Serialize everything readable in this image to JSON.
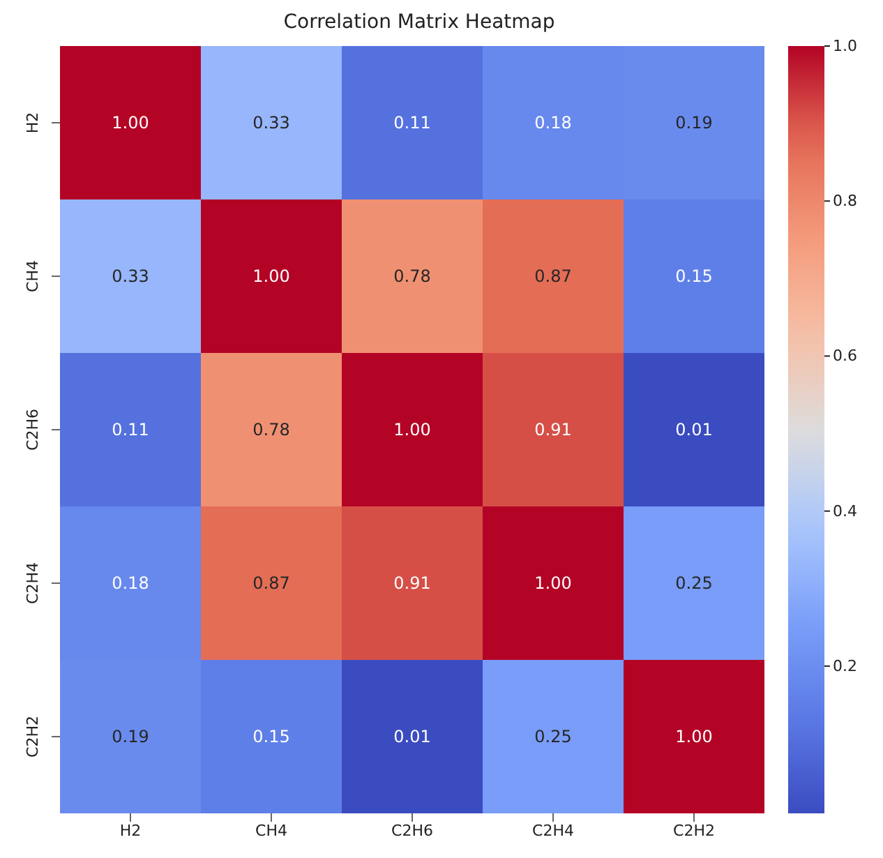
{
  "chart_data": {
    "type": "heatmap",
    "title": "Correlation Matrix Heatmap",
    "categories": [
      "H2",
      "CH4",
      "C2H6",
      "C2H4",
      "C2H2"
    ],
    "y_categories": [
      "H2",
      "CH4",
      "C2H6",
      "C2H4",
      "C2H2"
    ],
    "cells": [
      [
        1.0,
        0.33,
        0.11,
        0.18,
        0.19
      ],
      [
        0.33,
        1.0,
        0.78,
        0.87,
        0.15
      ],
      [
        0.11,
        0.78,
        1.0,
        0.91,
        0.01
      ],
      [
        0.18,
        0.87,
        0.91,
        1.0,
        0.25
      ],
      [
        0.19,
        0.15,
        0.01,
        0.25,
        1.0
      ]
    ],
    "cell_labels": [
      [
        "1.00",
        "0.33",
        "0.11",
        "0.18",
        "0.19"
      ],
      [
        "0.33",
        "1.00",
        "0.78",
        "0.87",
        "0.15"
      ],
      [
        "0.11",
        "0.78",
        "1.00",
        "0.91",
        "0.01"
      ],
      [
        "0.18",
        "0.87",
        "0.91",
        "1.00",
        "0.25"
      ],
      [
        "0.19",
        "0.15",
        "0.01",
        "0.25",
        "1.00"
      ]
    ],
    "clim": [
      0.01,
      1.0
    ],
    "cticks": [
      0.2,
      0.4,
      0.6,
      0.8,
      {
        "value": 1.0,
        "label": "1.0"
      }
    ]
  }
}
